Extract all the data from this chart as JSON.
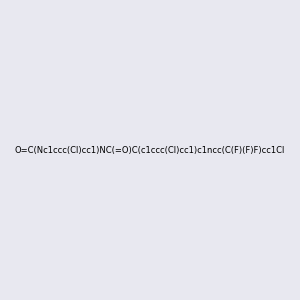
{
  "smiles": "O=C(Nc1ccc(Cl)cc1)NC(=O)C(c1ccc(Cl)cc1)c1ncc(C(F)(F)F)cc1Cl",
  "background_color": "#e8e8f0",
  "fig_width": 3.0,
  "fig_height": 3.0,
  "dpi": 100,
  "atom_colors": {
    "N": "#0000ff",
    "O": "#ff0000",
    "Cl": "#00aa00",
    "F": "#cc00cc"
  }
}
